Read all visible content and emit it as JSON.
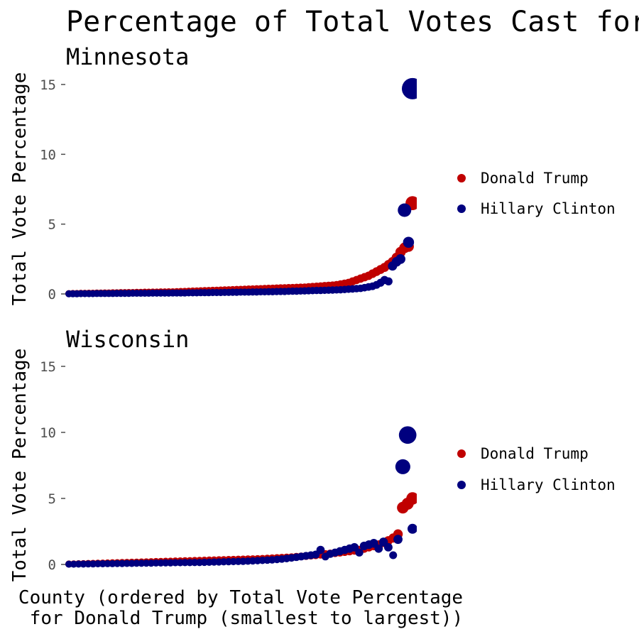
{
  "colors": {
    "trump": "#c00000",
    "clinton": "#00007f",
    "tick": "#4d4d4d"
  },
  "chart_data": {
    "type": "scatter",
    "title": "Percentage of Total Votes Cast for",
    "xlabel_line1": "County (ordered by Total Vote Percentage",
    "xlabel_line2": "for Donald Trump (smallest to largest))",
    "ylabel": "Total Vote Percentage",
    "ylim": [
      0,
      15
    ],
    "yticks": [
      0,
      5,
      10,
      15
    ],
    "yticklabels": [
      "0",
      "5",
      "10",
      "15"
    ],
    "grid": false,
    "legend_position": "right",
    "legend": [
      "Donald Trump",
      "Hillary Clinton"
    ],
    "panels": [
      {
        "title": "Minnesota",
        "counties": 87,
        "trump": [
          0.02,
          0.03,
          0.03,
          0.04,
          0.04,
          0.05,
          0.05,
          0.06,
          0.06,
          0.07,
          0.07,
          0.08,
          0.08,
          0.09,
          0.09,
          0.1,
          0.1,
          0.11,
          0.11,
          0.12,
          0.12,
          0.13,
          0.13,
          0.14,
          0.14,
          0.15,
          0.15,
          0.16,
          0.17,
          0.18,
          0.19,
          0.2,
          0.21,
          0.22,
          0.23,
          0.24,
          0.25,
          0.26,
          0.27,
          0.28,
          0.29,
          0.3,
          0.31,
          0.32,
          0.33,
          0.34,
          0.35,
          0.36,
          0.37,
          0.38,
          0.39,
          0.4,
          0.41,
          0.42,
          0.43,
          0.44,
          0.45,
          0.46,
          0.47,
          0.48,
          0.5,
          0.52,
          0.54,
          0.56,
          0.58,
          0.6,
          0.62,
          0.65,
          0.7,
          0.75,
          0.8,
          0.9,
          1.0,
          1.1,
          1.2,
          1.3,
          1.45,
          1.6,
          1.75,
          1.9,
          2.1,
          2.3,
          2.6,
          3.0,
          3.3,
          3.4,
          6.5
        ],
        "clinton": [
          0.01,
          0.01,
          0.01,
          0.02,
          0.02,
          0.02,
          0.02,
          0.03,
          0.03,
          0.03,
          0.03,
          0.03,
          0.04,
          0.04,
          0.04,
          0.04,
          0.05,
          0.05,
          0.05,
          0.05,
          0.05,
          0.06,
          0.06,
          0.06,
          0.06,
          0.06,
          0.07,
          0.07,
          0.07,
          0.07,
          0.08,
          0.08,
          0.08,
          0.09,
          0.09,
          0.09,
          0.1,
          0.1,
          0.1,
          0.11,
          0.11,
          0.12,
          0.12,
          0.13,
          0.13,
          0.13,
          0.14,
          0.14,
          0.15,
          0.15,
          0.16,
          0.16,
          0.17,
          0.18,
          0.18,
          0.19,
          0.2,
          0.2,
          0.21,
          0.22,
          0.23,
          0.24,
          0.25,
          0.25,
          0.26,
          0.27,
          0.28,
          0.29,
          0.3,
          0.32,
          0.34,
          0.36,
          0.38,
          0.4,
          0.45,
          0.5,
          0.55,
          0.65,
          0.8,
          1.0,
          0.9,
          2.0,
          2.3,
          2.5,
          6.0,
          3.7,
          14.7
        ]
      },
      {
        "title": "Wisconsin",
        "counties": 72,
        "trump": [
          0.03,
          0.04,
          0.05,
          0.06,
          0.07,
          0.08,
          0.09,
          0.1,
          0.11,
          0.12,
          0.13,
          0.14,
          0.15,
          0.16,
          0.17,
          0.18,
          0.19,
          0.2,
          0.21,
          0.22,
          0.23,
          0.24,
          0.25,
          0.26,
          0.27,
          0.28,
          0.29,
          0.3,
          0.31,
          0.32,
          0.33,
          0.34,
          0.35,
          0.36,
          0.37,
          0.38,
          0.39,
          0.4,
          0.41,
          0.42,
          0.43,
          0.45,
          0.47,
          0.49,
          0.51,
          0.53,
          0.55,
          0.58,
          0.61,
          0.64,
          0.67,
          0.7,
          0.74,
          0.78,
          0.82,
          0.86,
          0.9,
          0.95,
          1.0,
          1.05,
          1.1,
          1.2,
          1.3,
          1.4,
          1.5,
          1.65,
          1.8,
          2.0,
          2.3,
          4.3,
          4.6,
          5.0
        ],
        "clinton": [
          0.02,
          0.02,
          0.03,
          0.03,
          0.04,
          0.04,
          0.05,
          0.05,
          0.06,
          0.06,
          0.07,
          0.07,
          0.08,
          0.08,
          0.09,
          0.09,
          0.1,
          0.1,
          0.11,
          0.11,
          0.12,
          0.12,
          0.13,
          0.13,
          0.14,
          0.14,
          0.15,
          0.15,
          0.16,
          0.17,
          0.18,
          0.19,
          0.2,
          0.21,
          0.22,
          0.23,
          0.24,
          0.25,
          0.27,
          0.29,
          0.31,
          0.33,
          0.35,
          0.38,
          0.41,
          0.45,
          0.5,
          0.55,
          0.6,
          0.65,
          0.7,
          0.75,
          1.1,
          0.6,
          0.8,
          0.9,
          1.0,
          1.1,
          1.2,
          1.3,
          0.9,
          1.4,
          1.5,
          1.6,
          1.2,
          1.7,
          1.3,
          0.7,
          1.9,
          7.4,
          9.8,
          2.7
        ]
      }
    ]
  }
}
